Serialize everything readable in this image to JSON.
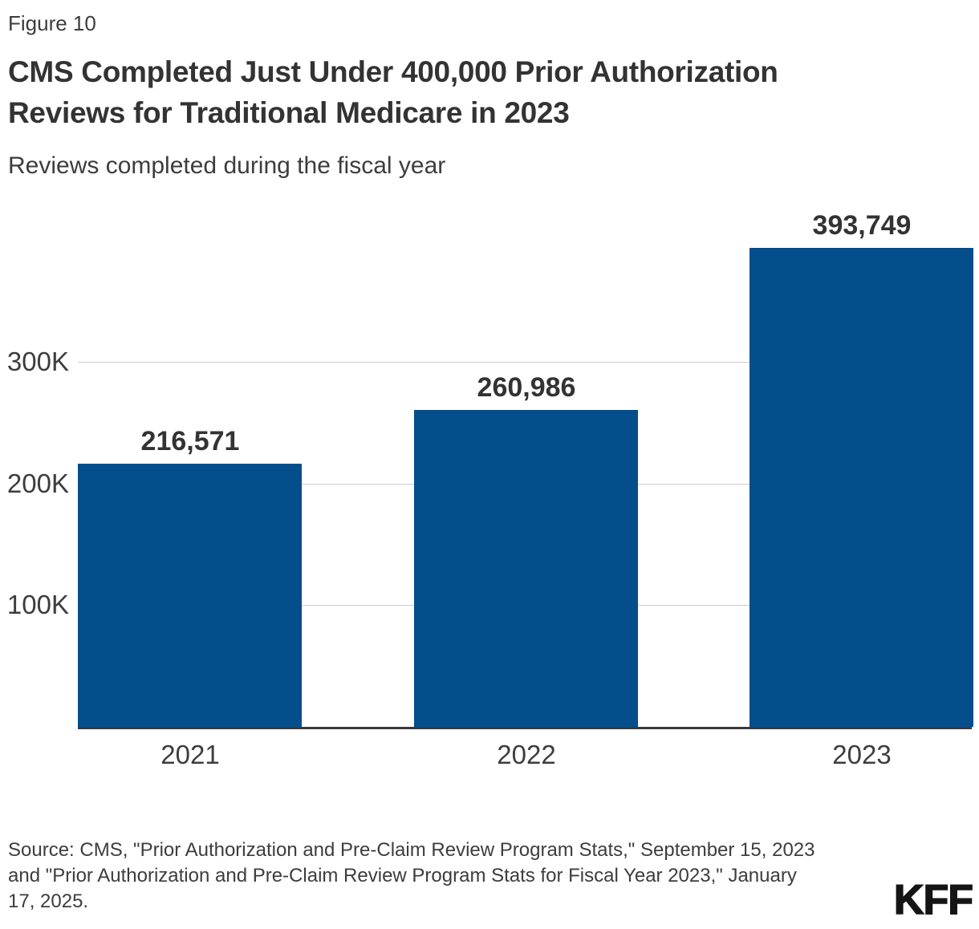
{
  "figure_label": "Figure 10",
  "title_lines": [
    "CMS Completed Just Under 400,000 Prior Authorization",
    "Reviews for Traditional Medicare in 2023"
  ],
  "subtitle": "Reviews completed during the fiscal year",
  "source_lines": [
    "Source: CMS, \"Prior Authorization and Pre-Claim Review Program Stats,\" September 15, 2023",
    "and \"Prior Authorization and Pre-Claim Review Program Stats for Fiscal Year 2023,\" January",
    "17, 2025."
  ],
  "logo_text": "KFF",
  "colors": {
    "bar": "#044e8c",
    "gridline": "#cccccc",
    "axis_line": "#3a3a3a",
    "title_text": "#333333",
    "body_text": "#3d3d3d"
  },
  "chart_data": {
    "type": "bar",
    "title": "CMS Completed Just Under 400,000 Prior Authorization Reviews for Traditional Medicare in 2023",
    "subtitle": "Reviews completed during the fiscal year",
    "categories": [
      "2021",
      "2022",
      "2023"
    ],
    "values": [
      216571,
      260986,
      393749
    ],
    "value_labels": [
      "216,571",
      "260,986",
      "393,749"
    ],
    "xlabel": "",
    "ylabel": "",
    "y_ticks": [
      {
        "value": 100000,
        "label": "100K"
      },
      {
        "value": 200000,
        "label": "200K"
      },
      {
        "value": 300000,
        "label": "300K"
      }
    ],
    "ylim": [
      0,
      430000
    ],
    "grid": true,
    "legend": false
  }
}
